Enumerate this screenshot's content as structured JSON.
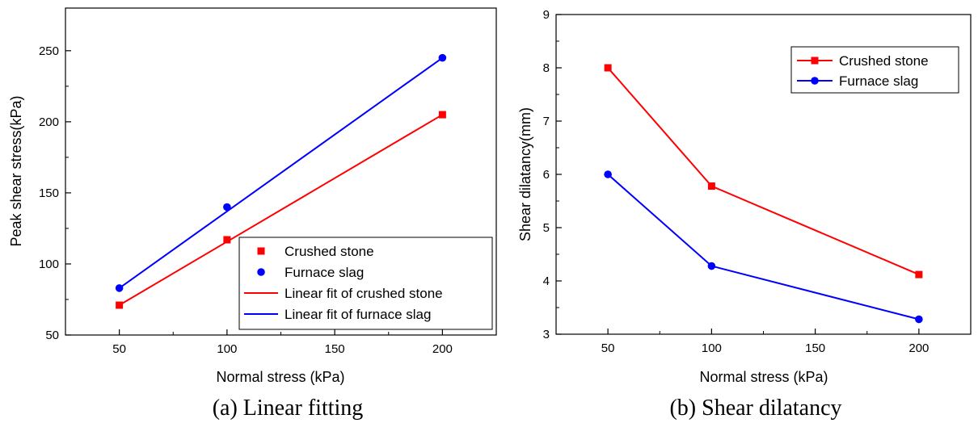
{
  "chart_data": [
    {
      "type": "scatter",
      "caption": "(a) Linear fitting",
      "xlabel": "Normal stress (kPa)",
      "ylabel": "Peak shear stress(kPa)",
      "xlim": [
        25,
        225
      ],
      "ylim": [
        50,
        280
      ],
      "xticks": [
        50,
        100,
        150,
        200
      ],
      "yticks": [
        50,
        100,
        150,
        200,
        250
      ],
      "legend_position": "bottom-right",
      "grid": false,
      "series": [
        {
          "name": "Crushed stone",
          "kind": "points",
          "marker": "square",
          "color": "#ff0000",
          "x": [
            50,
            100,
            200
          ],
          "y": [
            71,
            117,
            205
          ]
        },
        {
          "name": "Furnace slag",
          "kind": "points",
          "marker": "circle",
          "color": "#0000ff",
          "x": [
            50,
            100,
            200
          ],
          "y": [
            83,
            140,
            245
          ]
        },
        {
          "name": "Linear fit of crushed stone",
          "kind": "line",
          "color": "#ff0000",
          "x": [
            50,
            200
          ],
          "y": [
            71,
            205
          ]
        },
        {
          "name": "Linear fit of furnace slag",
          "kind": "line",
          "color": "#0000ff",
          "x": [
            50,
            200
          ],
          "y": [
            83,
            245
          ]
        }
      ]
    },
    {
      "type": "line",
      "caption": "(b) Shear dilatancy",
      "xlabel": "Normal stress (kPa)",
      "ylabel": "Shear dilatancy(mm)",
      "xlim": [
        25,
        225
      ],
      "ylim": [
        3,
        9
      ],
      "xticks": [
        50,
        100,
        150,
        200
      ],
      "yticks": [
        3,
        4,
        5,
        6,
        7,
        8,
        9
      ],
      "legend_position": "top-right",
      "grid": false,
      "series": [
        {
          "name": "Crushed stone",
          "kind": "line-points",
          "marker": "square",
          "color": "#ff0000",
          "x": [
            50,
            100,
            200
          ],
          "y": [
            8.0,
            5.78,
            4.12
          ]
        },
        {
          "name": "Furnace slag",
          "kind": "line-points",
          "marker": "circle",
          "color": "#0000ff",
          "x": [
            50,
            100,
            200
          ],
          "y": [
            6.0,
            4.28,
            3.28
          ]
        }
      ]
    }
  ]
}
